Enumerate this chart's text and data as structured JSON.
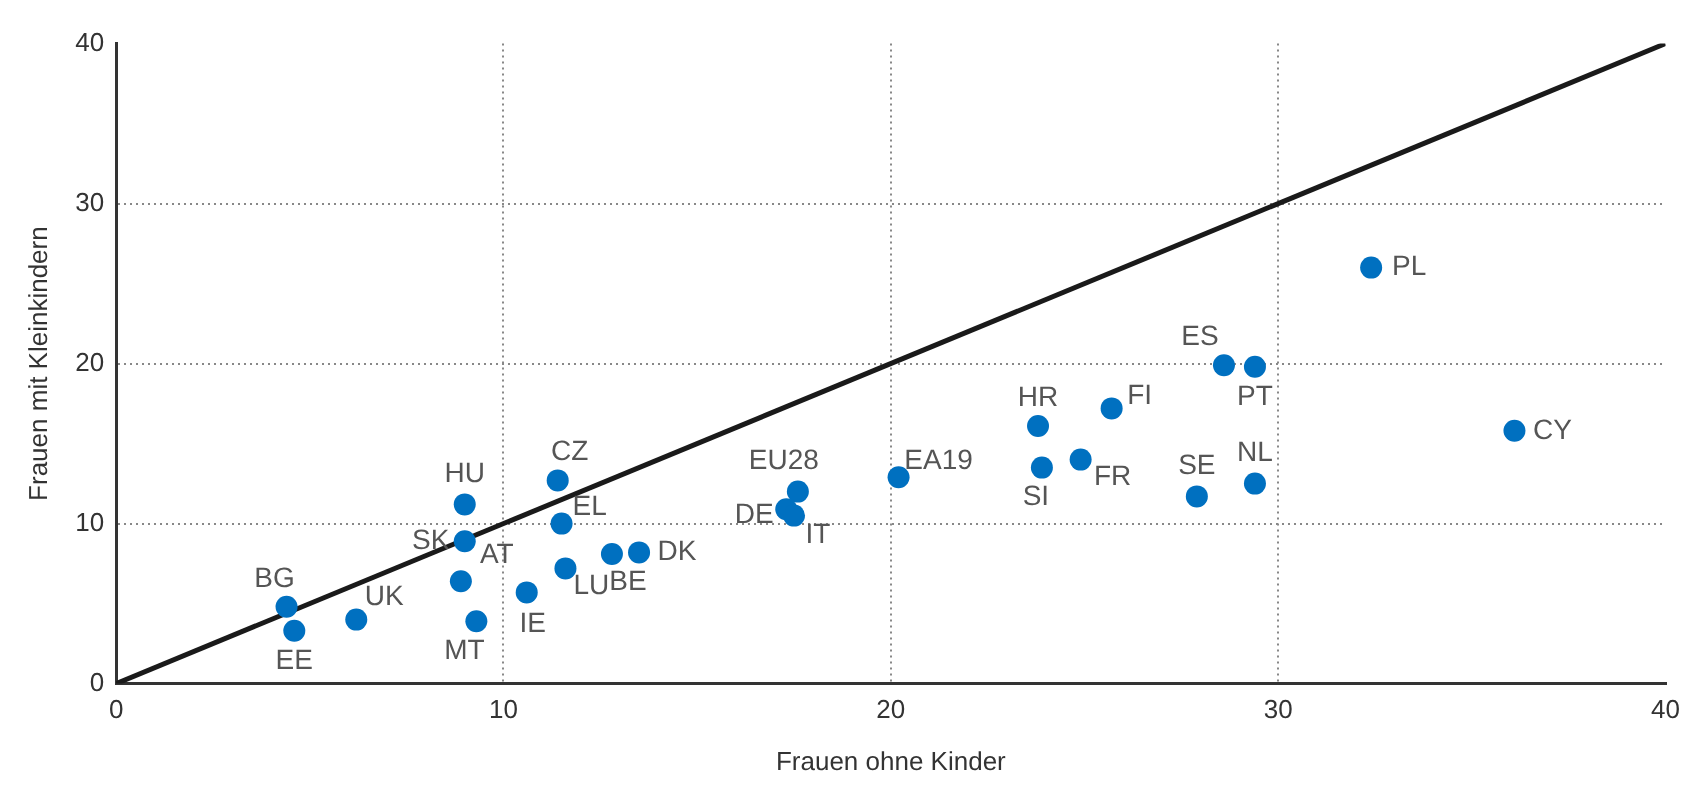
{
  "chart_data": {
    "type": "scatter",
    "xlabel": "Frauen ohne Kinder",
    "ylabel": "Frauen mit Kleinkindern",
    "xlim": [
      0,
      40
    ],
    "ylim": [
      0,
      40
    ],
    "xticks": [
      0,
      10,
      20,
      30,
      40
    ],
    "yticks": [
      0,
      10,
      20,
      30,
      40
    ],
    "grid": true,
    "legend": false,
    "series": [
      {
        "type": "scatter",
        "color": "#0070c0",
        "marker": "circle",
        "x": [
          4.4,
          4.6,
          6.2,
          9.0,
          9.0,
          8.9,
          9.3,
          11.4,
          11.5,
          11.6,
          10.6,
          12.8,
          13.5,
          17.6,
          17.3,
          17.5,
          20.2,
          23.8,
          23.9,
          24.9,
          25.7,
          28.6,
          29.4,
          27.9,
          29.4,
          32.4,
          36.1
        ],
        "values": [
          4.8,
          3.3,
          4.0,
          11.2,
          8.9,
          6.4,
          3.9,
          12.7,
          10.0,
          7.2,
          5.7,
          8.1,
          8.2,
          12.0,
          10.9,
          10.5,
          12.9,
          16.1,
          13.5,
          14.0,
          17.2,
          19.9,
          19.8,
          11.7,
          12.5,
          26.0,
          15.8
        ]
      },
      {
        "type": "line",
        "color": "#1a1a1a",
        "marker": "none",
        "line_style": "solid",
        "x": [
          0,
          40
        ],
        "values": [
          0,
          40
        ]
      }
    ],
    "annotations": [
      {
        "text": "BG",
        "x": 4.4,
        "y": 4.8
      },
      {
        "text": "EE",
        "x": 4.6,
        "y": 3.3
      },
      {
        "text": "UK",
        "x": 6.2,
        "y": 4.0
      },
      {
        "text": "HU",
        "x": 9.0,
        "y": 11.2
      },
      {
        "text": "SK",
        "x": 9.0,
        "y": 8.9
      },
      {
        "text": "AT",
        "x": 8.9,
        "y": 6.4
      },
      {
        "text": "MT",
        "x": 9.3,
        "y": 3.9
      },
      {
        "text": "CZ",
        "x": 11.4,
        "y": 12.7
      },
      {
        "text": "EL",
        "x": 11.5,
        "y": 10.0
      },
      {
        "text": "LU",
        "x": 11.6,
        "y": 7.2
      },
      {
        "text": "IE",
        "x": 10.6,
        "y": 5.7
      },
      {
        "text": "BE",
        "x": 12.8,
        "y": 8.1
      },
      {
        "text": "DK",
        "x": 13.5,
        "y": 8.2
      },
      {
        "text": "EU28",
        "x": 17.6,
        "y": 12.0
      },
      {
        "text": "DE",
        "x": 17.3,
        "y": 10.9
      },
      {
        "text": "IT",
        "x": 17.5,
        "y": 10.5
      },
      {
        "text": "EA19",
        "x": 20.2,
        "y": 12.9
      },
      {
        "text": "HR",
        "x": 23.8,
        "y": 16.1
      },
      {
        "text": "SI",
        "x": 23.9,
        "y": 13.5
      },
      {
        "text": "FR",
        "x": 24.9,
        "y": 14.0
      },
      {
        "text": "FI",
        "x": 25.7,
        "y": 17.2
      },
      {
        "text": "ES",
        "x": 28.6,
        "y": 19.9
      },
      {
        "text": "PT",
        "x": 29.4,
        "y": 19.8
      },
      {
        "text": "SE",
        "x": 27.9,
        "y": 11.7
      },
      {
        "text": "NL",
        "x": 29.4,
        "y": 12.5
      },
      {
        "text": "PL",
        "x": 32.4,
        "y": 26.0
      },
      {
        "text": "CY",
        "x": 36.1,
        "y": 15.8
      }
    ]
  }
}
